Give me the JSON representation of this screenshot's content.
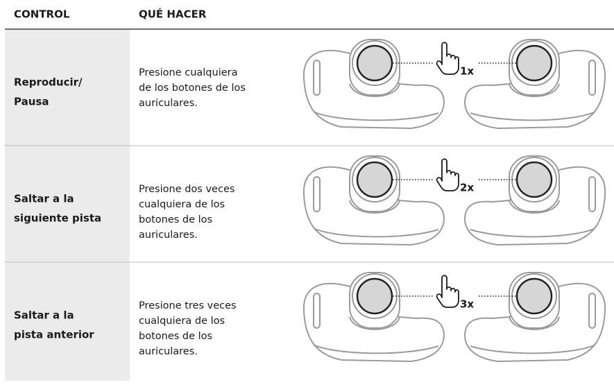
{
  "table": {
    "headers": [
      "CONTROL",
      "QUÉ HACER"
    ],
    "rows": [
      {
        "control": [
          "Reproducir/",
          "Pausa"
        ],
        "action": [
          "Presione cualquiera",
          "de los botones de los",
          "auriculares."
        ],
        "press": "1x"
      },
      {
        "control": [
          "Saltar a la",
          "siguiente pista"
        ],
        "action": [
          "Presione dos veces",
          "cualquiera de los",
          "botones de los",
          "auriculares."
        ],
        "press": "2x"
      },
      {
        "control": [
          "Saltar a la",
          "pista anterior"
        ],
        "action": [
          "Presione tres veces",
          "cualquiera de los",
          "botones de los",
          "auriculares."
        ],
        "press": "3x"
      }
    ]
  }
}
